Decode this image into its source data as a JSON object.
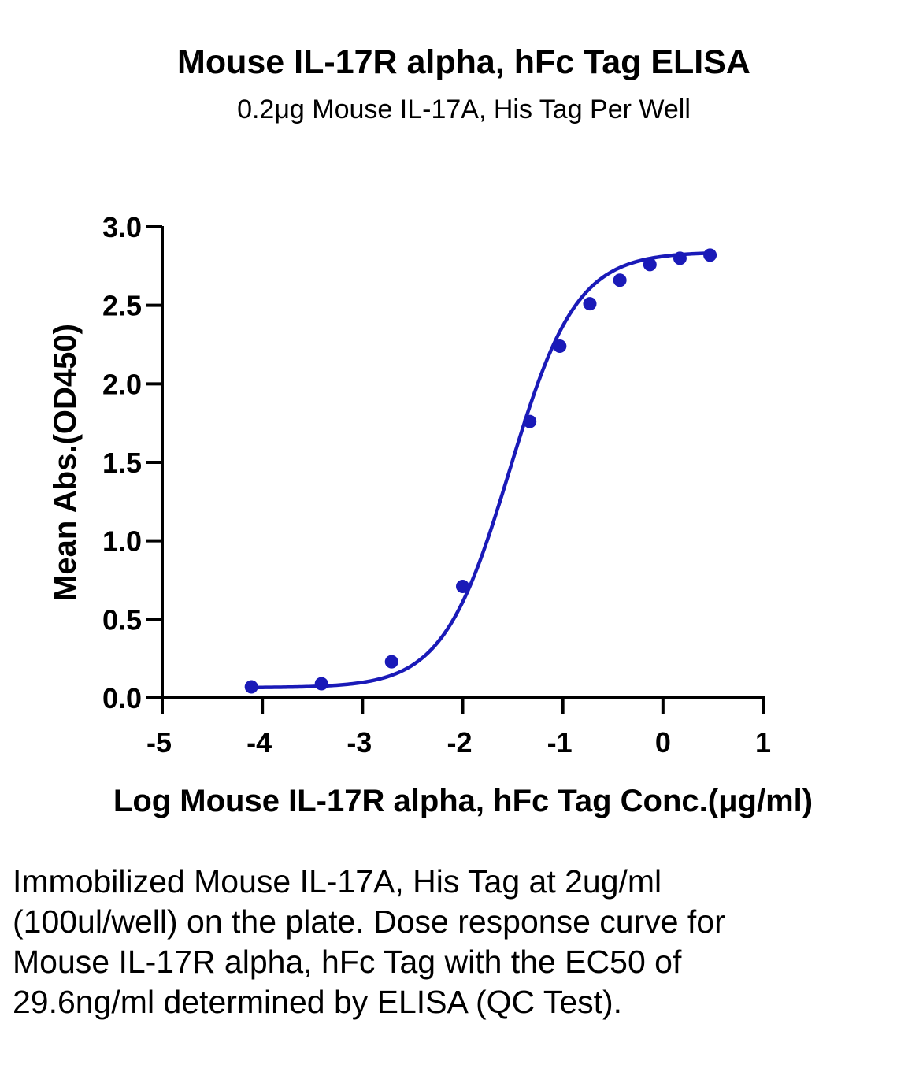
{
  "chart_data": {
    "type": "scatter",
    "title": "Mouse IL-17R alpha, hFc Tag ELISA",
    "subtitle": "0.2μg Mouse IL-17A, His Tag Per Well",
    "xlabel": "Log Mouse IL-17R alpha, hFc Tag Conc.(μg/ml)",
    "ylabel": "Mean Abs.(OD450)",
    "xlim": [
      -5,
      1
    ],
    "ylim": [
      0,
      3
    ],
    "xticks": [
      "-5",
      "-4",
      "-3",
      "-2",
      "-1",
      "0",
      "1"
    ],
    "yticks": [
      "0.0",
      "0.5",
      "1.0",
      "1.5",
      "2.0",
      "2.5",
      "3.0"
    ],
    "grid": false,
    "fit": "sigmoidal 4PL",
    "color": "#1a1ab8",
    "series": [
      {
        "x": [
          -4.11,
          -3.41,
          -2.71,
          -2.0,
          -1.33,
          -1.03,
          -0.73,
          -0.43,
          -0.13,
          0.17,
          0.47
        ],
        "y": [
          0.07,
          0.09,
          0.23,
          0.71,
          1.76,
          2.24,
          2.51,
          2.66,
          2.76,
          2.8,
          2.82
        ]
      }
    ]
  },
  "caption": "Immobilized Mouse IL-17A, His Tag at 2ug/ml (100ul/well) on the plate. Dose response curve for Mouse IL-17R alpha, hFc Tag with the EC50 of 29.6ng/ml determined by ELISA (QC Test)."
}
